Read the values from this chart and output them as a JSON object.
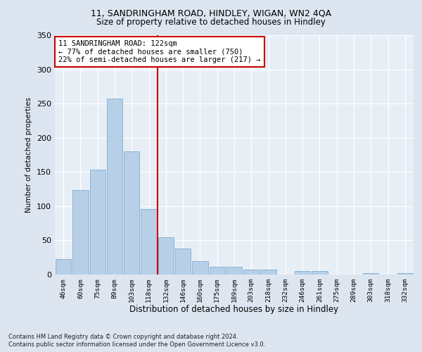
{
  "title1": "11, SANDRINGHAM ROAD, HINDLEY, WIGAN, WN2 4QA",
  "title2": "Size of property relative to detached houses in Hindley",
  "xlabel": "Distribution of detached houses by size in Hindley",
  "ylabel": "Number of detached properties",
  "categories": [
    "46sqm",
    "60sqm",
    "75sqm",
    "89sqm",
    "103sqm",
    "118sqm",
    "132sqm",
    "146sqm",
    "160sqm",
    "175sqm",
    "189sqm",
    "203sqm",
    "218sqm",
    "232sqm",
    "246sqm",
    "261sqm",
    "275sqm",
    "289sqm",
    "303sqm",
    "318sqm",
    "332sqm"
  ],
  "values": [
    23,
    124,
    153,
    257,
    180,
    96,
    55,
    38,
    20,
    11,
    11,
    7,
    7,
    0,
    5,
    5,
    0,
    0,
    2,
    0,
    2
  ],
  "bar_color": "#b8cfe8",
  "bar_edge_color": "#7aadd4",
  "vline_x_index": 6,
  "vline_color": "#cc0000",
  "annotation_line1": "11 SANDRINGHAM ROAD: 122sqm",
  "annotation_line2": "← 77% of detached houses are smaller (750)",
  "annotation_line3": "22% of semi-detached houses are larger (217) →",
  "ylim": [
    0,
    350
  ],
  "yticks": [
    0,
    50,
    100,
    150,
    200,
    250,
    300,
    350
  ],
  "footnote1": "Contains HM Land Registry data © Crown copyright and database right 2024.",
  "footnote2": "Contains public sector information licensed under the Open Government Licence v3.0.",
  "bg_color": "#dde6f0",
  "plot_bg_color": "#e8eef5"
}
